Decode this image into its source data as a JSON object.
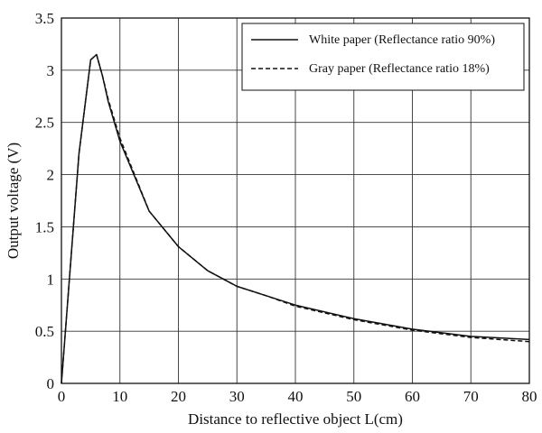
{
  "chart_data": {
    "type": "line",
    "xlabel": "Distance to reflective object L(cm)",
    "ylabel": "Output voltage (V)",
    "xlim": [
      0,
      80
    ],
    "ylim": [
      0,
      3.5
    ],
    "xticks": [
      0,
      10,
      20,
      30,
      40,
      50,
      60,
      70,
      80
    ],
    "xtick_labels": [
      "0",
      "10",
      "20",
      "30",
      "40",
      "50",
      "60",
      "70",
      "80"
    ],
    "yticks": [
      0,
      0.5,
      1,
      1.5,
      2,
      2.5,
      3,
      3.5
    ],
    "ytick_labels": [
      "0",
      "0.5",
      "1",
      "1.5",
      "2",
      "2.5",
      "3",
      "3.5"
    ],
    "grid": true,
    "legend_position": "top-right",
    "series": [
      {
        "name": "White paper (Reflectance ratio 90%)",
        "style": "solid",
        "color": "#111111",
        "x": [
          0,
          3,
          5,
          6,
          7,
          8,
          10,
          15,
          20,
          25,
          30,
          35,
          40,
          50,
          60,
          70,
          80
        ],
        "y": [
          0,
          2.2,
          3.1,
          3.15,
          2.95,
          2.7,
          2.32,
          1.65,
          1.31,
          1.08,
          0.93,
          0.84,
          0.75,
          0.62,
          0.52,
          0.45,
          0.42
        ]
      },
      {
        "name": "Gray paper (Reflectance ratio 18%)",
        "style": "dashed",
        "color": "#111111",
        "x": [
          0,
          3,
          5,
          6,
          7,
          8,
          10,
          15,
          20,
          25,
          30,
          35,
          40,
          50,
          60,
          70,
          80
        ],
        "y": [
          0,
          2.2,
          3.1,
          3.15,
          2.95,
          2.72,
          2.35,
          1.65,
          1.31,
          1.08,
          0.93,
          0.84,
          0.74,
          0.61,
          0.51,
          0.44,
          0.4
        ]
      }
    ]
  }
}
